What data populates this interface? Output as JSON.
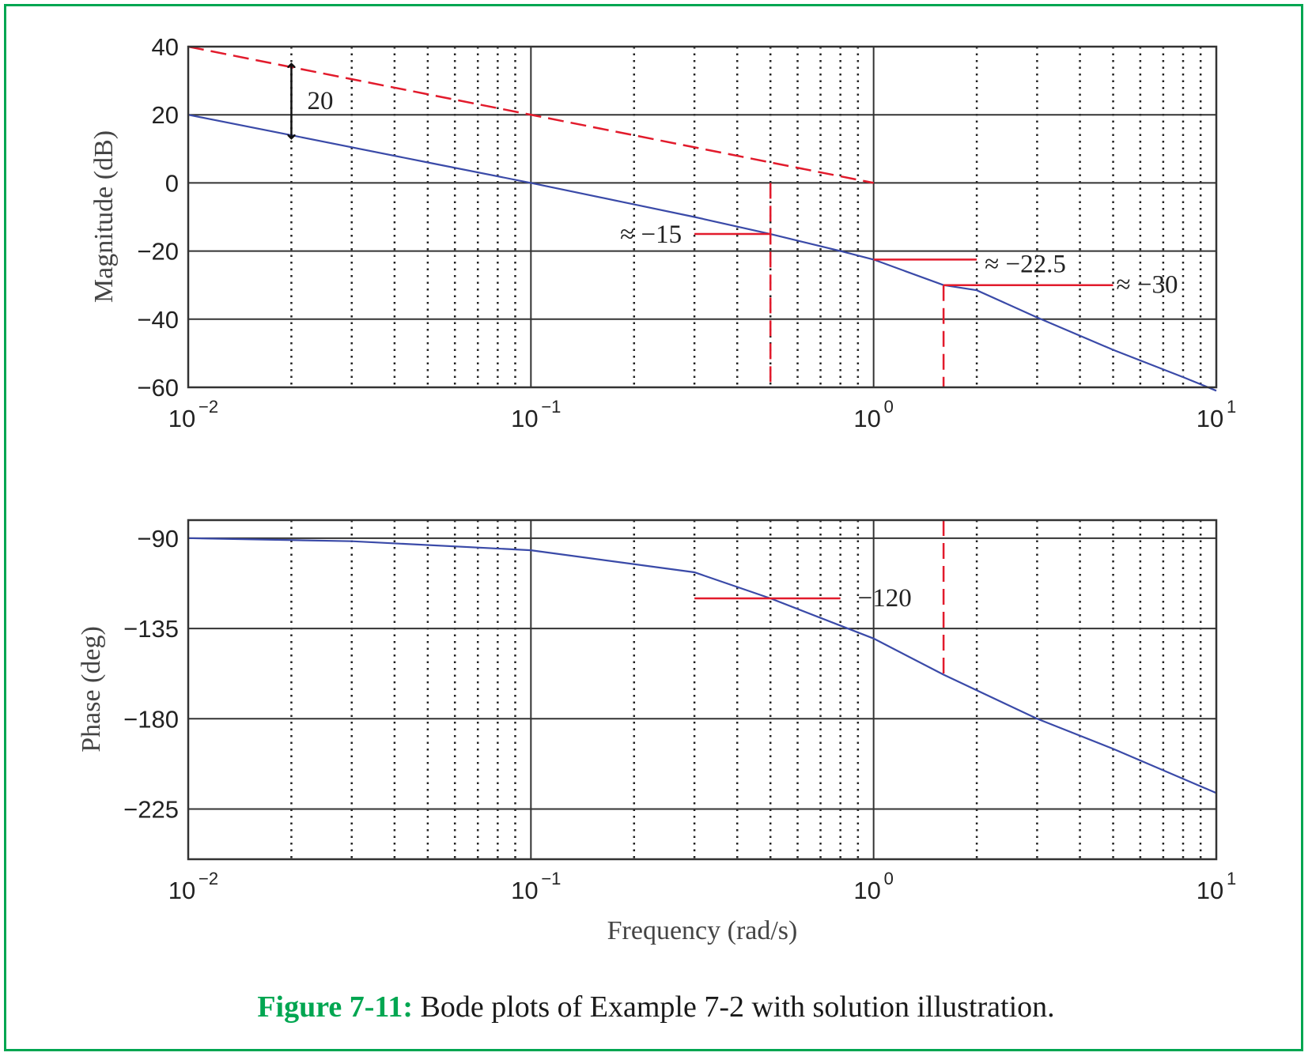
{
  "caption": {
    "label": "Figure 7-11:",
    "text": " Bode plots of Example 7-2 with solution illustration."
  },
  "colors": {
    "frame": "#00a651",
    "curve": "#3a4aa8",
    "annotation": "#e21b2c",
    "grid": "#333333"
  },
  "chart_data": [
    {
      "type": "line",
      "xscale": "log",
      "xlim": [
        0.01,
        10
      ],
      "ylim": [
        -60,
        40
      ],
      "ylabel": "Magnitude (dB)",
      "xlabel": "",
      "yticks": [
        40,
        20,
        0,
        -20,
        -40,
        -60
      ],
      "ytick_labels": [
        "40",
        "20",
        "0",
        "−20",
        "−40",
        "−60"
      ],
      "xticks": [
        0.01,
        0.1,
        1,
        10
      ],
      "xtick_base": "10",
      "xtick_exponents": [
        "−2",
        "−1",
        "0",
        "1"
      ],
      "grid": true,
      "series": [
        {
          "style": "solid",
          "color": "#3a4aa8",
          "x": [
            0.01,
            0.02,
            0.05,
            0.1,
            0.2,
            0.3,
            0.5,
            0.8,
            1,
            1.6,
            2,
            3,
            5,
            8,
            10
          ],
          "y": [
            20,
            14,
            6,
            0,
            -6.3,
            -10,
            -15,
            -20,
            -22.5,
            -30,
            -31.5,
            -39.5,
            -49,
            -57,
            -61
          ]
        },
        {
          "style": "dashed",
          "color": "#e21b2c",
          "x": [
            0.01,
            1
          ],
          "y": [
            40,
            0
          ]
        }
      ],
      "annotations": [
        {
          "text": "20",
          "kind": "double-arrow",
          "x": 0.02,
          "y_range": [
            14,
            34
          ]
        },
        {
          "text": "≈ −15",
          "x": 0.5,
          "y": -15
        },
        {
          "text": "≈ −22.5",
          "x": 1,
          "y": -22.5
        },
        {
          "text": "≈ −30",
          "x": 1.6,
          "y": -30
        }
      ]
    },
    {
      "type": "line",
      "xscale": "log",
      "xlim": [
        0.01,
        10
      ],
      "ylim": [
        -250,
        -81
      ],
      "ylabel": "Phase (deg)",
      "xlabel": "Frequency (rad/s)",
      "yticks": [
        -90,
        -135,
        -180,
        -225
      ],
      "ytick_labels": [
        "−90",
        "−135",
        "−180",
        "−225"
      ],
      "xticks": [
        0.01,
        0.1,
        1,
        10
      ],
      "xtick_base": "10",
      "xtick_exponents": [
        "−2",
        "−1",
        "0",
        "1"
      ],
      "grid": true,
      "series": [
        {
          "style": "solid",
          "color": "#3a4aa8",
          "x": [
            0.01,
            0.03,
            0.1,
            0.3,
            0.5,
            1,
            1.6,
            3,
            5,
            10
          ],
          "y": [
            -90,
            -91.5,
            -96,
            -107,
            -120,
            -140,
            -158,
            -180,
            -195,
            -217
          ]
        }
      ],
      "annotations": [
        {
          "text": "−120",
          "x": 0.5,
          "y": -120
        },
        {
          "text": "",
          "kind": "vertical-dashed",
          "x": 1.6,
          "y_range": [
            -158,
            -81
          ]
        }
      ]
    }
  ]
}
